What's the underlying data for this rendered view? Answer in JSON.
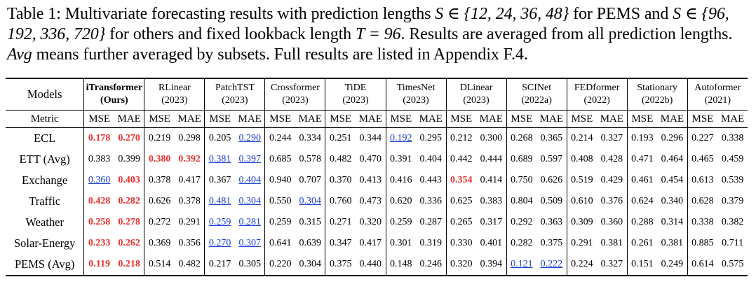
{
  "caption": {
    "part1": "Table 1: Multivariate forecasting results with prediction lengths ",
    "math1": "S ∈ {12, 24, 36, 48}",
    "part2": " for PEMS and ",
    "math2": "S ∈ {96, 192, 336, 720}",
    "part3": " for others and fixed lookback length ",
    "math3": "T = 96",
    "part4": ". Results are averaged from all prediction lengths. ",
    "avg": "Avg",
    "part5": " means further averaged by subsets. Full results are listed in Appendix F.4."
  },
  "table": {
    "models_label": "Models",
    "metric_label": "Metric",
    "metric_names": [
      "MSE",
      "MAE"
    ],
    "models": [
      {
        "name": "iTransformer",
        "year": "(Ours)"
      },
      {
        "name": "RLinear",
        "year": "(2023)"
      },
      {
        "name": "PatchTST",
        "year": "(2023)"
      },
      {
        "name": "Crossformer",
        "year": "(2023)"
      },
      {
        "name": "TiDE",
        "year": "(2023)"
      },
      {
        "name": "TimesNet",
        "year": "(2023)"
      },
      {
        "name": "DLinear",
        "year": "(2023)"
      },
      {
        "name": "SCINet",
        "year": "(2022a)"
      },
      {
        "name": "FEDformer",
        "year": "(2022)"
      },
      {
        "name": "Stationary",
        "year": "(2022b)"
      },
      {
        "name": "Autoformer",
        "year": "(2021)"
      }
    ],
    "rows": [
      {
        "dataset": "ECL",
        "values": [
          "0.178",
          "0.270",
          "0.219",
          "0.298",
          "0.205",
          "0.290",
          "0.244",
          "0.334",
          "0.251",
          "0.344",
          "0.192",
          "0.295",
          "0.212",
          "0.300",
          "0.268",
          "0.365",
          "0.214",
          "0.327",
          "0.193",
          "0.296",
          "0.227",
          "0.338"
        ],
        "styles": [
          "b",
          "b",
          "",
          "",
          "",
          "s",
          "",
          "",
          "",
          "",
          "s",
          "",
          "",
          "",
          "",
          "",
          "",
          "",
          "",
          "",
          "",
          ""
        ]
      },
      {
        "dataset": "ETT (Avg)",
        "values": [
          "0.383",
          "0.399",
          "0.380",
          "0.392",
          "0.381",
          "0.397",
          "0.685",
          "0.578",
          "0.482",
          "0.470",
          "0.391",
          "0.404",
          "0.442",
          "0.444",
          "0.689",
          "0.597",
          "0.408",
          "0.428",
          "0.471",
          "0.464",
          "0.465",
          "0.459"
        ],
        "styles": [
          "",
          "",
          "b",
          "b",
          "s",
          "s",
          "",
          "",
          "",
          "",
          "",
          "",
          "",
          "",
          "",
          "",
          "",
          "",
          "",
          "",
          "",
          ""
        ]
      },
      {
        "dataset": "Exchange",
        "values": [
          "0.360",
          "0.403",
          "0.378",
          "0.417",
          "0.367",
          "0.404",
          "0.940",
          "0.707",
          "0.370",
          "0.413",
          "0.416",
          "0.443",
          "0.354",
          "0.414",
          "0.750",
          "0.626",
          "0.519",
          "0.429",
          "0.461",
          "0.454",
          "0.613",
          "0.539"
        ],
        "styles": [
          "s",
          "b",
          "",
          "",
          "",
          "s",
          "",
          "",
          "",
          "",
          "",
          "",
          "b",
          "",
          "",
          "",
          "",
          "",
          "",
          "",
          "",
          ""
        ]
      },
      {
        "dataset": "Traffic",
        "values": [
          "0.428",
          "0.282",
          "0.626",
          "0.378",
          "0.481",
          "0.304",
          "0.550",
          "0.304",
          "0.760",
          "0.473",
          "0.620",
          "0.336",
          "0.625",
          "0.383",
          "0.804",
          "0.509",
          "0.610",
          "0.376",
          "0.624",
          "0.340",
          "0.628",
          "0.379"
        ],
        "styles": [
          "b",
          "b",
          "",
          "",
          "s",
          "s",
          "",
          "s",
          "",
          "",
          "",
          "",
          "",
          "",
          "",
          "",
          "",
          "",
          "",
          "",
          "",
          ""
        ]
      },
      {
        "dataset": "Weather",
        "values": [
          "0.258",
          "0.278",
          "0.272",
          "0.291",
          "0.259",
          "0.281",
          "0.259",
          "0.315",
          "0.271",
          "0.320",
          "0.259",
          "0.287",
          "0.265",
          "0.317",
          "0.292",
          "0.363",
          "0.309",
          "0.360",
          "0.288",
          "0.314",
          "0.338",
          "0.382"
        ],
        "styles": [
          "b",
          "b",
          "",
          "",
          "s",
          "s",
          "",
          "",
          "",
          "",
          "",
          "",
          "",
          "",
          "",
          "",
          "",
          "",
          "",
          "",
          "",
          ""
        ]
      },
      {
        "dataset": "Solar-Energy",
        "values": [
          "0.233",
          "0.262",
          "0.369",
          "0.356",
          "0.270",
          "0.307",
          "0.641",
          "0.639",
          "0.347",
          "0.417",
          "0.301",
          "0.319",
          "0.330",
          "0.401",
          "0.282",
          "0.375",
          "0.291",
          "0.381",
          "0.261",
          "0.381",
          "0.885",
          "0.711"
        ],
        "styles": [
          "b",
          "b",
          "",
          "",
          "s",
          "s",
          "",
          "",
          "",
          "",
          "",
          "",
          "",
          "",
          "",
          "",
          "",
          "",
          "",
          "",
          "",
          ""
        ]
      },
      {
        "dataset": "PEMS (Avg)",
        "values": [
          "0.119",
          "0.218",
          "0.514",
          "0.482",
          "0.217",
          "0.305",
          "0.220",
          "0.304",
          "0.375",
          "0.440",
          "0.148",
          "0.246",
          "0.320",
          "0.394",
          "0.121",
          "0.222",
          "0.224",
          "0.327",
          "0.151",
          "0.249",
          "0.614",
          "0.575"
        ],
        "styles": [
          "b",
          "b",
          "",
          "",
          "",
          "",
          "",
          "",
          "",
          "",
          "",
          "",
          "",
          "",
          "s",
          "s",
          "",
          "",
          "",
          "",
          "",
          ""
        ]
      }
    ]
  }
}
